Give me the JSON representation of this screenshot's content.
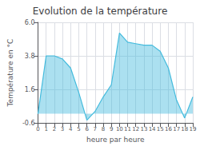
{
  "chart_data": {
    "type": "area",
    "title": "Evolution de la température",
    "xlabel": "heure par heure",
    "ylabel": "Température en °C",
    "x": [
      0,
      1,
      2,
      3,
      4,
      5,
      6,
      7,
      8,
      9,
      10,
      11,
      12,
      13,
      14,
      15,
      16,
      17,
      18,
      19
    ],
    "values": [
      0.0,
      3.8,
      3.8,
      3.6,
      3.0,
      1.4,
      -0.42,
      0.15,
      1.1,
      1.9,
      5.3,
      4.7,
      4.6,
      4.5,
      4.5,
      4.1,
      3.0,
      0.9,
      -0.28,
      1.1
    ],
    "color": "#44bbdd",
    "xlim": [
      0,
      19
    ],
    "ylim": [
      -0.6,
      6.0
    ],
    "xticks": [
      0,
      1,
      2,
      3,
      4,
      5,
      6,
      7,
      8,
      9,
      10,
      11,
      12,
      13,
      14,
      15,
      16,
      17,
      18,
      19
    ],
    "yticks": [
      -0.6,
      1.6,
      3.8,
      {
        "value": 6.0,
        "label": "6.0"
      }
    ],
    "grid": true
  }
}
